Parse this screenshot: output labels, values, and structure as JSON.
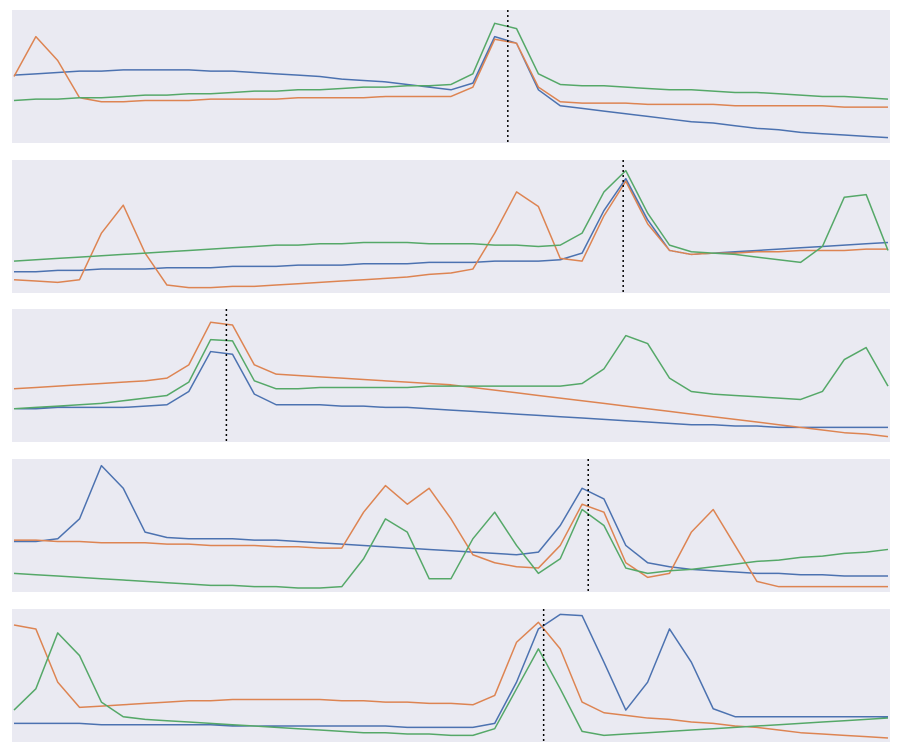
{
  "chart_data": [
    {
      "type": "line",
      "xlim": [
        0,
        100
      ],
      "ylim": [
        0,
        1
      ],
      "marker_x": 56.5,
      "x": [
        0,
        2.5,
        5,
        7.5,
        10,
        12.5,
        15,
        17.5,
        20,
        22.5,
        25,
        27.5,
        30,
        32.5,
        35,
        37.5,
        40,
        42.5,
        45,
        47.5,
        50,
        52.5,
        55,
        57.5,
        60,
        62.5,
        65,
        67.5,
        70,
        72.5,
        75,
        77.5,
        80,
        82.5,
        85,
        87.5,
        90,
        92.5,
        95,
        97.5,
        100
      ],
      "series": [
        {
          "color": "#4c72b0",
          "values": [
            0.51,
            0.52,
            0.53,
            0.54,
            0.54,
            0.55,
            0.55,
            0.55,
            0.55,
            0.54,
            0.54,
            0.53,
            0.52,
            0.51,
            0.5,
            0.48,
            0.47,
            0.46,
            0.44,
            0.42,
            0.4,
            0.45,
            0.8,
            0.75,
            0.4,
            0.28,
            0.26,
            0.24,
            0.22,
            0.2,
            0.18,
            0.16,
            0.15,
            0.13,
            0.11,
            0.1,
            0.08,
            0.07,
            0.06,
            0.05,
            0.04
          ]
        },
        {
          "color": "#dd8452",
          "values": [
            0.5,
            0.8,
            0.62,
            0.34,
            0.31,
            0.31,
            0.32,
            0.32,
            0.32,
            0.33,
            0.33,
            0.33,
            0.33,
            0.34,
            0.34,
            0.34,
            0.34,
            0.35,
            0.35,
            0.35,
            0.35,
            0.42,
            0.78,
            0.75,
            0.42,
            0.31,
            0.3,
            0.3,
            0.3,
            0.29,
            0.29,
            0.29,
            0.29,
            0.28,
            0.28,
            0.28,
            0.28,
            0.28,
            0.27,
            0.27,
            0.27
          ]
        },
        {
          "color": "#55a868",
          "values": [
            0.32,
            0.33,
            0.33,
            0.34,
            0.34,
            0.35,
            0.36,
            0.36,
            0.37,
            0.37,
            0.38,
            0.39,
            0.39,
            0.4,
            0.4,
            0.41,
            0.42,
            0.42,
            0.43,
            0.43,
            0.44,
            0.52,
            0.9,
            0.86,
            0.52,
            0.44,
            0.43,
            0.43,
            0.42,
            0.41,
            0.4,
            0.4,
            0.39,
            0.38,
            0.38,
            0.37,
            0.36,
            0.35,
            0.35,
            0.34,
            0.33
          ]
        }
      ]
    },
    {
      "type": "line",
      "xlim": [
        0,
        100
      ],
      "ylim": [
        0,
        1
      ],
      "marker_x": 69.7,
      "x": [
        0,
        2.5,
        5,
        7.5,
        10,
        12.5,
        15,
        17.5,
        20,
        22.5,
        25,
        27.5,
        30,
        32.5,
        35,
        37.5,
        40,
        42.5,
        45,
        47.5,
        50,
        52.5,
        55,
        57.5,
        60,
        62.5,
        65,
        67.5,
        70,
        72.5,
        75,
        77.5,
        80,
        82.5,
        85,
        87.5,
        90,
        92.5,
        95,
        97.5,
        100
      ],
      "series": [
        {
          "color": "#4c72b0",
          "values": [
            0.16,
            0.16,
            0.17,
            0.17,
            0.18,
            0.18,
            0.18,
            0.19,
            0.19,
            0.19,
            0.2,
            0.2,
            0.2,
            0.21,
            0.21,
            0.21,
            0.22,
            0.22,
            0.22,
            0.23,
            0.23,
            0.23,
            0.24,
            0.24,
            0.24,
            0.25,
            0.3,
            0.62,
            0.86,
            0.55,
            0.32,
            0.29,
            0.3,
            0.31,
            0.32,
            0.33,
            0.34,
            0.35,
            0.36,
            0.37,
            0.38
          ]
        },
        {
          "color": "#dd8452",
          "values": [
            0.1,
            0.09,
            0.08,
            0.1,
            0.45,
            0.66,
            0.3,
            0.06,
            0.04,
            0.04,
            0.05,
            0.05,
            0.06,
            0.07,
            0.08,
            0.09,
            0.1,
            0.11,
            0.12,
            0.14,
            0.15,
            0.18,
            0.45,
            0.76,
            0.65,
            0.26,
            0.24,
            0.58,
            0.84,
            0.52,
            0.32,
            0.29,
            0.3,
            0.3,
            0.31,
            0.31,
            0.32,
            0.32,
            0.32,
            0.33,
            0.33
          ]
        },
        {
          "color": "#55a868",
          "values": [
            0.24,
            0.25,
            0.26,
            0.27,
            0.28,
            0.29,
            0.3,
            0.31,
            0.32,
            0.33,
            0.34,
            0.35,
            0.36,
            0.36,
            0.37,
            0.37,
            0.38,
            0.38,
            0.38,
            0.37,
            0.37,
            0.37,
            0.36,
            0.36,
            0.35,
            0.36,
            0.45,
            0.76,
            0.92,
            0.6,
            0.36,
            0.31,
            0.3,
            0.29,
            0.27,
            0.25,
            0.23,
            0.35,
            0.72,
            0.74,
            0.32
          ]
        }
      ]
    },
    {
      "type": "line",
      "xlim": [
        0,
        100
      ],
      "ylim": [
        0,
        1
      ],
      "marker_x": 24.3,
      "x": [
        0,
        2.5,
        5,
        7.5,
        10,
        12.5,
        15,
        17.5,
        20,
        22.5,
        25,
        27.5,
        30,
        32.5,
        35,
        37.5,
        40,
        42.5,
        45,
        47.5,
        50,
        52.5,
        55,
        57.5,
        60,
        62.5,
        65,
        67.5,
        70,
        72.5,
        75,
        77.5,
        80,
        82.5,
        85,
        87.5,
        90,
        92.5,
        95,
        97.5,
        100
      ],
      "series": [
        {
          "color": "#4c72b0",
          "values": [
            0.25,
            0.25,
            0.26,
            0.26,
            0.26,
            0.26,
            0.27,
            0.28,
            0.38,
            0.68,
            0.66,
            0.36,
            0.28,
            0.28,
            0.28,
            0.27,
            0.27,
            0.26,
            0.26,
            0.25,
            0.24,
            0.23,
            0.22,
            0.21,
            0.2,
            0.19,
            0.18,
            0.17,
            0.16,
            0.15,
            0.14,
            0.13,
            0.13,
            0.12,
            0.12,
            0.11,
            0.11,
            0.11,
            0.11,
            0.11,
            0.11
          ]
        },
        {
          "color": "#dd8452",
          "values": [
            0.4,
            0.41,
            0.42,
            0.43,
            0.44,
            0.45,
            0.46,
            0.48,
            0.58,
            0.9,
            0.88,
            0.58,
            0.51,
            0.5,
            0.49,
            0.48,
            0.47,
            0.46,
            0.45,
            0.44,
            0.43,
            0.41,
            0.39,
            0.37,
            0.35,
            0.33,
            0.31,
            0.29,
            0.27,
            0.25,
            0.23,
            0.21,
            0.19,
            0.17,
            0.15,
            0.13,
            0.11,
            0.09,
            0.07,
            0.06,
            0.04
          ]
        },
        {
          "color": "#55a868",
          "values": [
            0.25,
            0.26,
            0.27,
            0.28,
            0.29,
            0.31,
            0.33,
            0.35,
            0.45,
            0.77,
            0.76,
            0.46,
            0.4,
            0.4,
            0.41,
            0.41,
            0.41,
            0.41,
            0.41,
            0.42,
            0.42,
            0.42,
            0.42,
            0.42,
            0.42,
            0.42,
            0.44,
            0.55,
            0.8,
            0.74,
            0.48,
            0.38,
            0.36,
            0.35,
            0.34,
            0.33,
            0.32,
            0.38,
            0.62,
            0.71,
            0.42
          ]
        }
      ]
    },
    {
      "type": "line",
      "xlim": [
        0,
        100
      ],
      "ylim": [
        0,
        1
      ],
      "marker_x": 65.7,
      "x": [
        0,
        2.5,
        5,
        7.5,
        10,
        12.5,
        15,
        17.5,
        20,
        22.5,
        25,
        27.5,
        30,
        32.5,
        35,
        37.5,
        40,
        42.5,
        45,
        47.5,
        50,
        52.5,
        55,
        57.5,
        60,
        62.5,
        65,
        67.5,
        70,
        72.5,
        75,
        77.5,
        80,
        82.5,
        85,
        87.5,
        90,
        92.5,
        95,
        97.5,
        100
      ],
      "series": [
        {
          "color": "#4c72b0",
          "values": [
            0.38,
            0.38,
            0.4,
            0.55,
            0.95,
            0.78,
            0.45,
            0.41,
            0.4,
            0.4,
            0.4,
            0.39,
            0.39,
            0.38,
            0.37,
            0.36,
            0.35,
            0.34,
            0.33,
            0.32,
            0.31,
            0.3,
            0.29,
            0.28,
            0.3,
            0.5,
            0.78,
            0.7,
            0.35,
            0.22,
            0.19,
            0.17,
            0.16,
            0.15,
            0.14,
            0.14,
            0.13,
            0.13,
            0.12,
            0.12,
            0.12
          ]
        },
        {
          "color": "#dd8452",
          "values": [
            0.39,
            0.39,
            0.38,
            0.38,
            0.37,
            0.37,
            0.37,
            0.36,
            0.36,
            0.35,
            0.35,
            0.35,
            0.34,
            0.34,
            0.33,
            0.33,
            0.6,
            0.8,
            0.66,
            0.78,
            0.55,
            0.28,
            0.22,
            0.19,
            0.18,
            0.35,
            0.66,
            0.6,
            0.22,
            0.11,
            0.14,
            0.45,
            0.62,
            0.35,
            0.08,
            0.04,
            0.04,
            0.04,
            0.04,
            0.04,
            0.04
          ]
        },
        {
          "color": "#55a868",
          "values": [
            0.14,
            0.13,
            0.12,
            0.11,
            0.1,
            0.09,
            0.08,
            0.07,
            0.06,
            0.05,
            0.05,
            0.04,
            0.04,
            0.03,
            0.03,
            0.04,
            0.25,
            0.55,
            0.45,
            0.1,
            0.1,
            0.4,
            0.6,
            0.35,
            0.14,
            0.25,
            0.62,
            0.5,
            0.18,
            0.14,
            0.16,
            0.17,
            0.19,
            0.21,
            0.23,
            0.24,
            0.26,
            0.27,
            0.29,
            0.3,
            0.32
          ]
        }
      ]
    },
    {
      "type": "line",
      "xlim": [
        0,
        100
      ],
      "ylim": [
        0,
        1
      ],
      "marker_x": 60.6,
      "x": [
        0,
        2.5,
        5,
        7.5,
        10,
        12.5,
        15,
        17.5,
        20,
        22.5,
        25,
        27.5,
        30,
        32.5,
        35,
        37.5,
        40,
        42.5,
        45,
        47.5,
        50,
        52.5,
        55,
        57.5,
        60,
        62.5,
        65,
        67.5,
        70,
        72.5,
        75,
        77.5,
        80,
        82.5,
        85,
        87.5,
        90,
        92.5,
        95,
        97.5,
        100
      ],
      "series": [
        {
          "color": "#4c72b0",
          "values": [
            0.14,
            0.14,
            0.14,
            0.14,
            0.13,
            0.13,
            0.13,
            0.13,
            0.13,
            0.13,
            0.12,
            0.12,
            0.12,
            0.12,
            0.12,
            0.12,
            0.12,
            0.12,
            0.11,
            0.11,
            0.11,
            0.11,
            0.14,
            0.45,
            0.85,
            0.96,
            0.95,
            0.6,
            0.24,
            0.45,
            0.85,
            0.6,
            0.25,
            0.19,
            0.19,
            0.19,
            0.19,
            0.19,
            0.19,
            0.19,
            0.19
          ]
        },
        {
          "color": "#dd8452",
          "values": [
            0.88,
            0.85,
            0.45,
            0.26,
            0.27,
            0.28,
            0.29,
            0.3,
            0.31,
            0.31,
            0.32,
            0.32,
            0.32,
            0.32,
            0.32,
            0.31,
            0.31,
            0.3,
            0.3,
            0.29,
            0.29,
            0.28,
            0.35,
            0.75,
            0.9,
            0.7,
            0.3,
            0.22,
            0.2,
            0.18,
            0.17,
            0.15,
            0.14,
            0.12,
            0.11,
            0.09,
            0.07,
            0.06,
            0.05,
            0.04,
            0.03
          ]
        },
        {
          "color": "#55a868",
          "values": [
            0.24,
            0.4,
            0.82,
            0.65,
            0.3,
            0.19,
            0.17,
            0.16,
            0.15,
            0.14,
            0.13,
            0.12,
            0.11,
            0.1,
            0.09,
            0.08,
            0.07,
            0.07,
            0.06,
            0.06,
            0.05,
            0.05,
            0.1,
            0.4,
            0.7,
            0.4,
            0.08,
            0.05,
            0.06,
            0.07,
            0.08,
            0.09,
            0.1,
            0.11,
            0.12,
            0.13,
            0.14,
            0.15,
            0.16,
            0.17,
            0.18
          ]
        }
      ]
    }
  ]
}
